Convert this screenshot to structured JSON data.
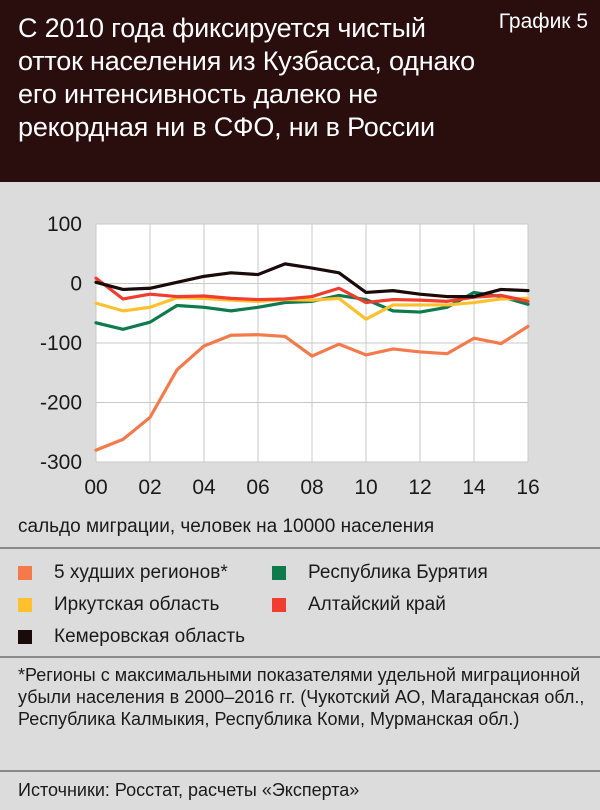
{
  "header": {
    "title": "С 2010 года фиксируется чистый отток населения из Кузбасса, однако его интенсивность далеко не рекордная ни в СФО, ни в России",
    "chart_number": "График 5"
  },
  "chart_data": {
    "type": "line",
    "xlabel": "сальдо миграции, человек на 10000 населения",
    "ylabel": "",
    "ylim": [
      -300,
      100
    ],
    "xlim": [
      2000,
      2016
    ],
    "y_ticks": [
      "100",
      "0",
      "-100",
      "-200",
      "-300"
    ],
    "y_tick_values": [
      100,
      0,
      -100,
      -200,
      -300
    ],
    "x_ticks": [
      "00",
      "02",
      "04",
      "06",
      "08",
      "10",
      "12",
      "14",
      "16"
    ],
    "x_tick_values": [
      2000,
      2002,
      2004,
      2006,
      2008,
      2010,
      2012,
      2014,
      2016
    ],
    "grid": true,
    "legend_position": "bottom",
    "x": [
      2000,
      2001,
      2002,
      2003,
      2004,
      2005,
      2006,
      2007,
      2008,
      2009,
      2010,
      2011,
      2012,
      2013,
      2014,
      2015,
      2016
    ],
    "series": [
      {
        "name": "5 худших регионов*",
        "color": "#f47a4c",
        "values": [
          -280,
          -262,
          -225,
          -145,
          -105,
          -87,
          -86,
          -89,
          -122,
          -102,
          -120,
          -110,
          -115,
          -118,
          -92,
          -101,
          -72
        ]
      },
      {
        "name": "Республика Бурятия",
        "color": "#0e7a4e",
        "values": [
          -66,
          -77,
          -65,
          -37,
          -40,
          -46,
          -40,
          -32,
          -30,
          -20,
          -27,
          -46,
          -48,
          -40,
          -15,
          -22,
          -35
        ]
      },
      {
        "name": "Иркутская область",
        "color": "#ffc02e",
        "values": [
          -33,
          -46,
          -40,
          -24,
          -25,
          -28,
          -30,
          -27,
          -28,
          -25,
          -60,
          -36,
          -36,
          -36,
          -32,
          -26,
          -25
        ]
      },
      {
        "name": "Алтайский край",
        "color": "#ef3d2f",
        "values": [
          9,
          -26,
          -18,
          -22,
          -21,
          -25,
          -27,
          -26,
          -22,
          -8,
          -32,
          -27,
          -28,
          -30,
          -23,
          -20,
          -30
        ]
      },
      {
        "name": "Кемеровская область",
        "color": "#1a0a0a",
        "values": [
          2,
          -10,
          -8,
          2,
          12,
          18,
          15,
          33,
          26,
          18,
          -15,
          -12,
          -18,
          -22,
          -22,
          -10,
          -12
        ]
      }
    ]
  },
  "legend": {
    "items": [
      {
        "label": "5 худших регионов*",
        "color": "#f47a4c"
      },
      {
        "label": "Республика Бурятия",
        "color": "#0e7a4e"
      },
      {
        "label": "Иркутская область",
        "color": "#ffc02e"
      },
      {
        "label": "Алтайский край",
        "color": "#ef3d2f"
      },
      {
        "label": "Кемеровская область",
        "color": "#1a0a0a"
      }
    ]
  },
  "footnote": "*Регионы с максимальными показателями удельной миграционной убыли населения в 2000–2016 гг. (Чукотский АО, Магаданская обл., Республика Калмыкия, Республика Коми, Мурманская обл.)",
  "source": "Источники: Росстат, расчеты «Эксперта»"
}
